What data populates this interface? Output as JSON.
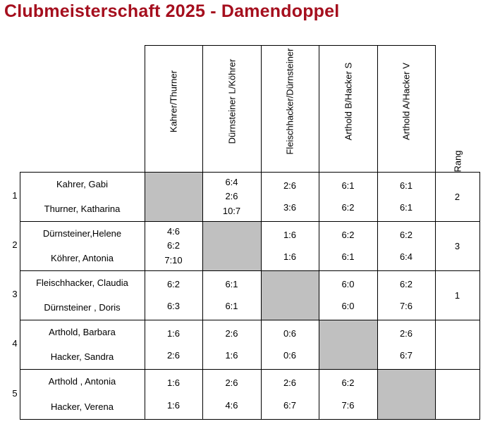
{
  "title": "Clubmeisterschaft 2025 - Damendoppel",
  "columns": [
    "Kahrer/Thurner",
    "Dürnsteiner L/Köhrer",
    "Fleischhacker/Dürnsteiner",
    "Arthold B/Hacker S",
    "Arthold A/Hacker V"
  ],
  "rang_header": "Rang",
  "rows": [
    {
      "num": "1",
      "player1": "Kahrer, Gabi",
      "player2": "Thurner, Katharina",
      "rang": "2",
      "results": [
        null,
        [
          "6:4",
          "2:6",
          "10:7"
        ],
        [
          "2:6",
          "3:6"
        ],
        [
          "6:1",
          "6:2"
        ],
        [
          "6:1",
          "6:1"
        ]
      ]
    },
    {
      "num": "2",
      "player1": "Dürnsteiner,Helene",
      "player2": "Köhrer, Antonia",
      "rang": "3",
      "results": [
        [
          "4:6",
          "6:2",
          "7:10"
        ],
        null,
        [
          "1:6",
          "1:6"
        ],
        [
          "6:2",
          "6:1"
        ],
        [
          "6:2",
          "6:4"
        ]
      ]
    },
    {
      "num": "3",
      "player1": "Fleischhacker, Claudia",
      "player2": "Dürnsteiner , Doris",
      "rang": "1",
      "results": [
        [
          "6:2",
          "6:3"
        ],
        [
          "6:1",
          "6:1"
        ],
        null,
        [
          "6:0",
          "6:0"
        ],
        [
          "6:2",
          "7:6"
        ]
      ]
    },
    {
      "num": "4",
      "player1": "Arthold, Barbara",
      "player2": "Hacker, Sandra",
      "rang": "",
      "results": [
        [
          "1:6",
          "2:6"
        ],
        [
          "2:6",
          "1:6"
        ],
        [
          "0:6",
          "0:6"
        ],
        null,
        [
          "2:6",
          "6:7"
        ]
      ]
    },
    {
      "num": "5",
      "player1": "Arthold , Antonia",
      "player2": "Hacker, Verena",
      "rang": "",
      "results": [
        [
          "1:6",
          "1:6"
        ],
        [
          "2:6",
          "4:6"
        ],
        [
          "2:6",
          "6:7"
        ],
        [
          "6:2",
          "7:6"
        ],
        null
      ]
    }
  ],
  "colors": {
    "title": "#a50f1e",
    "self_cell": "#c0c0c0",
    "lines": "#000000"
  }
}
